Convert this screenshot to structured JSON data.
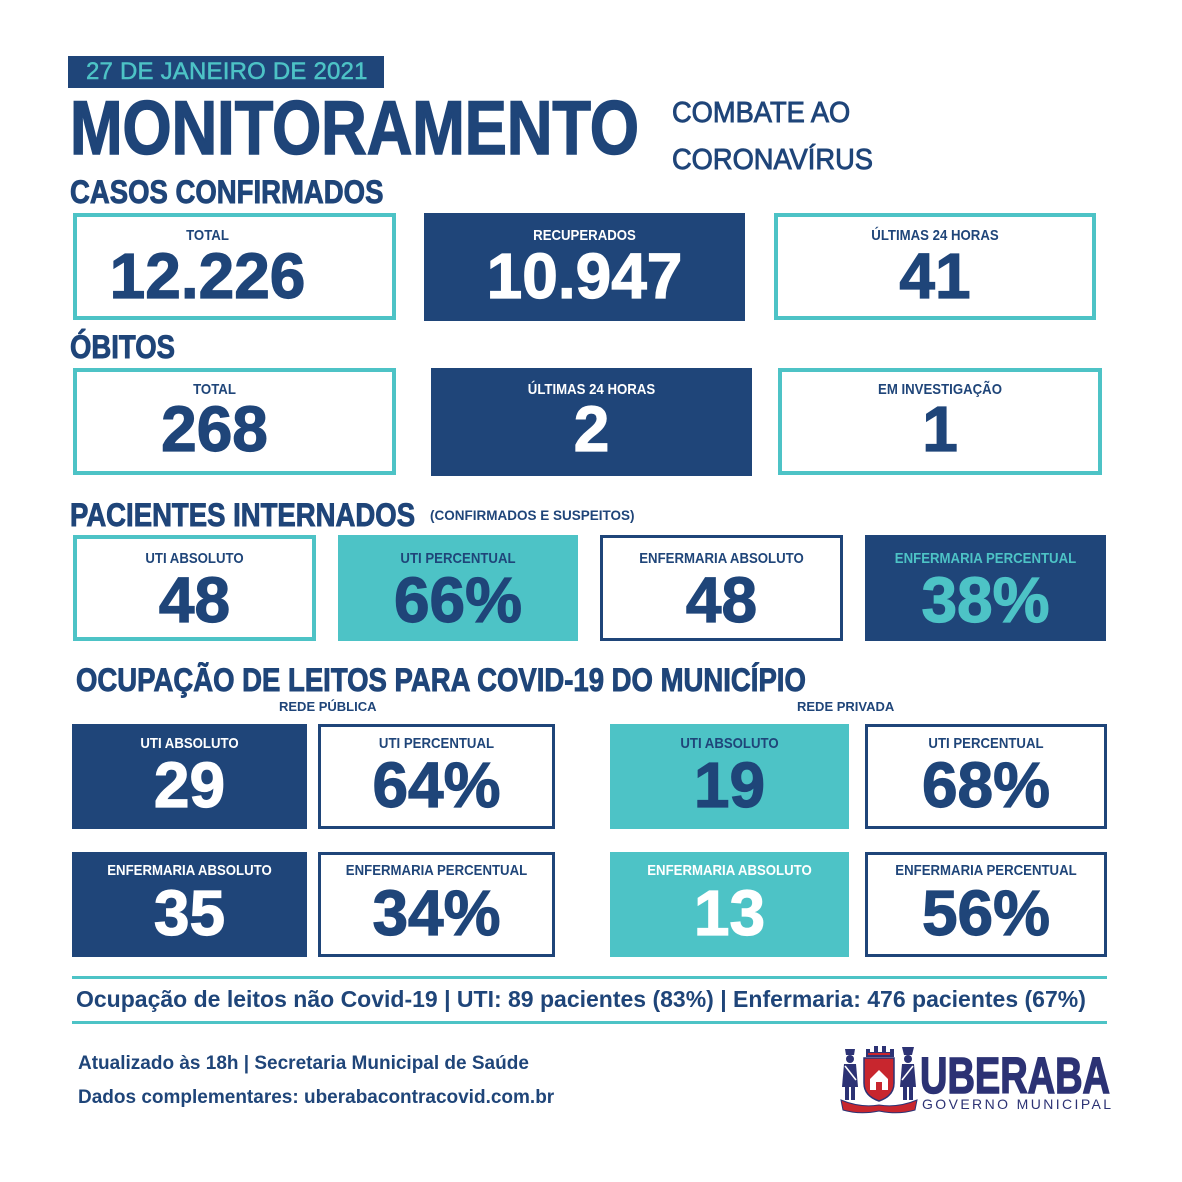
{
  "colors": {
    "navy": "#1f4579",
    "teal": "#4dc3c6",
    "logo_navy": "#2c3274",
    "crest_red": "#c8262e"
  },
  "header": {
    "date": "27 DE JANEIRO DE 2021",
    "title": "MONITORAMENTO",
    "subtitle_line1": "COMBATE AO",
    "subtitle_line2": "CORONAVÍRUS"
  },
  "casos_confirmados": {
    "heading": "CASOS CONFIRMADOS",
    "cards": [
      {
        "label": "TOTAL",
        "value": "12.226"
      },
      {
        "label": "RECUPERADOS",
        "value": "10.947"
      },
      {
        "label": "ÚLTIMAS 24 HORAS",
        "value": "41"
      }
    ]
  },
  "obitos": {
    "heading": "ÓBITOS",
    "cards": [
      {
        "label": "TOTAL",
        "value": "268"
      },
      {
        "label": "ÚLTIMAS 24 HORAS",
        "value": "2"
      },
      {
        "label": "EM INVESTIGAÇÃO",
        "value": "1"
      }
    ]
  },
  "pacientes_internados": {
    "heading": "PACIENTES INTERNADOS",
    "note": "(CONFIRMADOS E SUSPEITOS)",
    "cards": [
      {
        "label": "UTI ABSOLUTO",
        "value": "48"
      },
      {
        "label": "UTI PERCENTUAL",
        "value": "66%"
      },
      {
        "label": "ENFERMARIA ABSOLUTO",
        "value": "48"
      },
      {
        "label": "ENFERMARIA PERCENTUAL",
        "value": "38%"
      }
    ]
  },
  "ocupacao_leitos": {
    "heading": "OCUPAÇÃO DE LEITOS PARA COVID-19 DO MUNICÍPIO",
    "rede_publica": {
      "label": "REDE PÚBLICA",
      "cards": [
        {
          "label": "UTI ABSOLUTO",
          "value": "29"
        },
        {
          "label": "UTI PERCENTUAL",
          "value": "64%"
        },
        {
          "label": "ENFERMARIA ABSOLUTO",
          "value": "35"
        },
        {
          "label": "ENFERMARIA PERCENTUAL",
          "value": "34%"
        }
      ]
    },
    "rede_privada": {
      "label": "REDE PRIVADA",
      "cards": [
        {
          "label": "UTI ABSOLUTO",
          "value": "19"
        },
        {
          "label": "UTI PERCENTUAL",
          "value": "68%"
        },
        {
          "label": "ENFERMARIA ABSOLUTO",
          "value": "13"
        },
        {
          "label": "ENFERMARIA PERCENTUAL",
          "value": "56%"
        }
      ]
    }
  },
  "nao_covid": {
    "text": "Ocupação de leitos não Covid-19 | UTI: 89 pacientes (83%) | Enfermaria: 476 pacientes (67%)"
  },
  "footer": {
    "updated": "Atualizado às 18h | Secretaria Municipal de Saúde",
    "more_data": "Dados complementares: uberabacontracovid.com.br"
  },
  "logo": {
    "icon": "coat-of-arms-icon",
    "name": "UBERABA",
    "tagline": "GOVERNO MUNICIPAL"
  }
}
